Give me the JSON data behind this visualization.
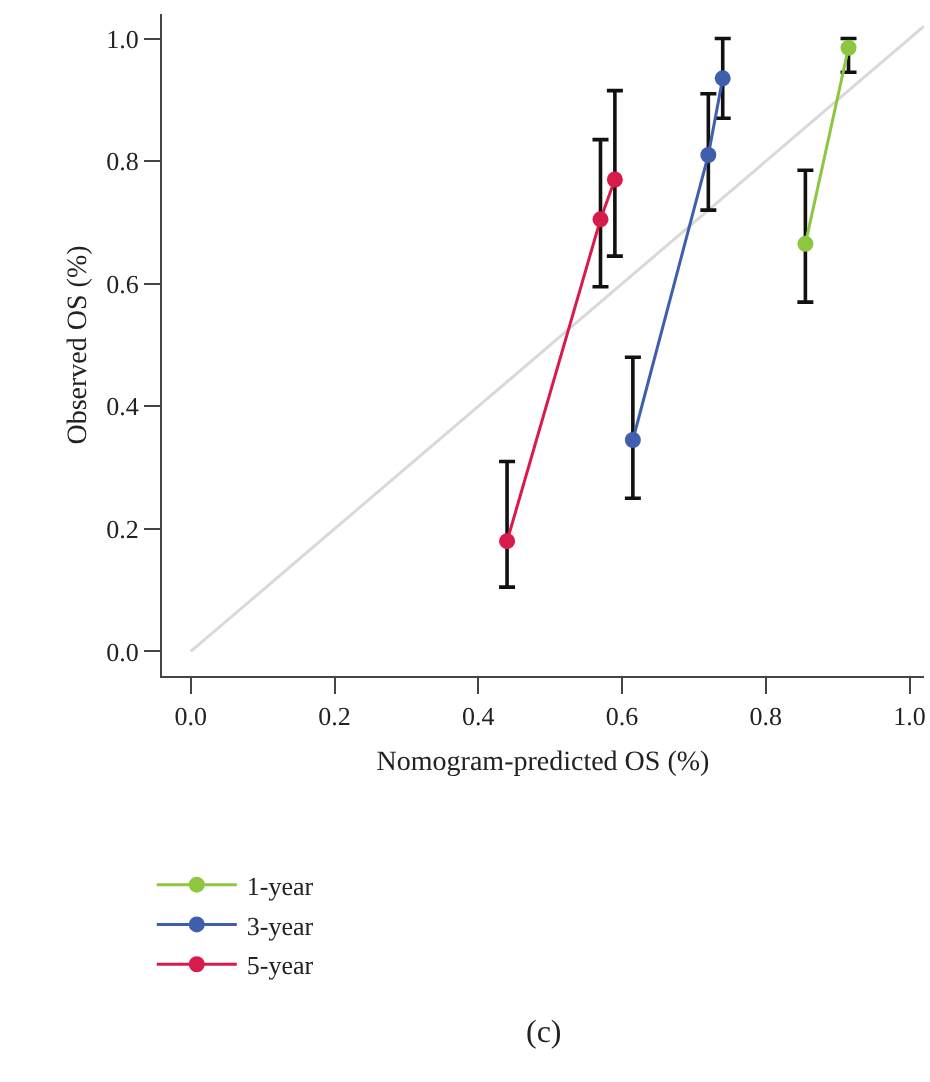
{
  "chart_data": {
    "type": "line",
    "xlabel": "Nomogram-predicted OS (%)",
    "ylabel": "Observed OS (%)",
    "xlim": [
      -0.04,
      1.02
    ],
    "ylim": [
      -0.04,
      1.04
    ],
    "xticks": [
      {
        "value": 0,
        "label": "0.0"
      },
      0.2,
      0.4,
      0.6,
      0.8,
      {
        "value": 1,
        "label": "1.0"
      }
    ],
    "yticks": [
      {
        "value": 0,
        "label": "0.0"
      },
      0.2,
      0.4,
      0.6,
      0.8,
      {
        "value": 1,
        "label": "1.0"
      }
    ],
    "grid": false,
    "legend": "bottom left",
    "marker": "circle",
    "line_style": "solid",
    "annotations": [
      "(c)"
    ],
    "series": [
      {
        "type": "line",
        "color": "#d9d9d9",
        "marker": "none",
        "x": [
          0,
          1.02
        ],
        "values": [
          0,
          1.02
        ]
      },
      {
        "name": "1-year",
        "color": "#8dc63f",
        "x": [
          0.855,
          0.915
        ],
        "values": [
          0.665,
          0.985
        ],
        "errors": [
          [
            0.57,
            0.785
          ],
          [
            0.945,
            1.0
          ]
        ]
      },
      {
        "name": "3-year",
        "color": "#3f5fae",
        "x": [
          0.615,
          0.72,
          0.74
        ],
        "values": [
          0.345,
          0.81,
          0.935
        ],
        "errors": [
          [
            0.25,
            0.48
          ],
          [
            0.72,
            0.91
          ],
          [
            0.87,
            1.0
          ]
        ]
      },
      {
        "name": "5-year",
        "color": "#d81b4a",
        "x": [
          0.44,
          0.57,
          0.59
        ],
        "values": [
          0.18,
          0.705,
          0.77
        ],
        "errors": [
          [
            0.105,
            0.31
          ],
          [
            0.595,
            0.835
          ],
          [
            0.645,
            0.915
          ]
        ]
      }
    ]
  }
}
